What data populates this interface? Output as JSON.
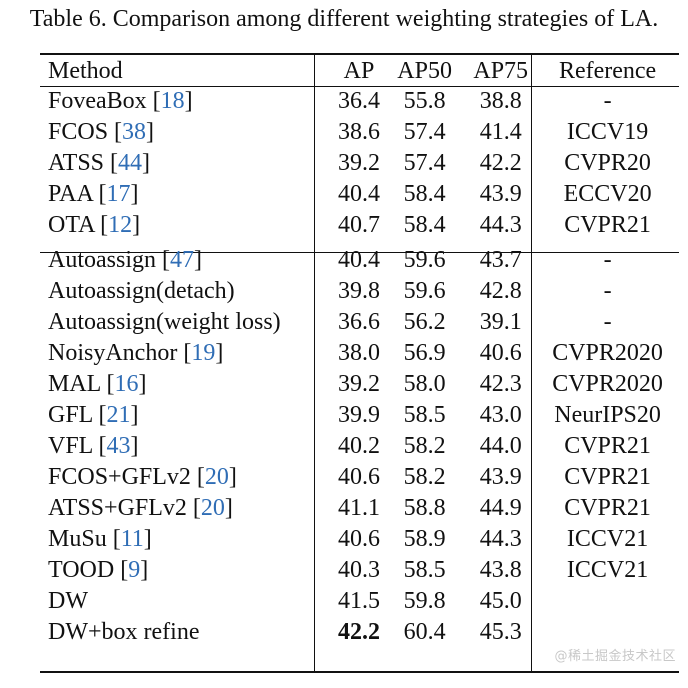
{
  "caption": "Table 6. Comparison among different weighting strategies of LA.",
  "header": {
    "method": "Method",
    "ap": "AP",
    "ap50": "AP50",
    "ap75": "AP75",
    "reference": "Reference"
  },
  "group1": [
    {
      "name": "FoveaBox",
      "cite": "18",
      "ap": "36.4",
      "ap50": "55.8",
      "ap75": "38.8",
      "ref": "-"
    },
    {
      "name": "FCOS",
      "cite": "38",
      "ap": "38.6",
      "ap50": "57.4",
      "ap75": "41.4",
      "ref": "ICCV19"
    },
    {
      "name": "ATSS",
      "cite": "44",
      "ap": "39.2",
      "ap50": "57.4",
      "ap75": "42.2",
      "ref": "CVPR20"
    },
    {
      "name": "PAA",
      "cite": "17",
      "ap": "40.4",
      "ap50": "58.4",
      "ap75": "43.9",
      "ref": "ECCV20"
    },
    {
      "name": "OTA",
      "cite": "12",
      "ap": "40.7",
      "ap50": "58.4",
      "ap75": "44.3",
      "ref": "CVPR21"
    }
  ],
  "group2": [
    {
      "name": "Autoassign",
      "cite": "47",
      "ap": "40.4",
      "ap50": "59.6",
      "ap75": "43.7",
      "ref": "-"
    },
    {
      "name": "Autoassign(detach)",
      "cite": "",
      "ap": "39.8",
      "ap50": "59.6",
      "ap75": "42.8",
      "ref": "-"
    },
    {
      "name": "Autoassign(weight loss)",
      "cite": "",
      "ap": "36.6",
      "ap50": "56.2",
      "ap75": "39.1",
      "ref": "-"
    },
    {
      "name": "NoisyAnchor",
      "cite": "19",
      "ap": "38.0",
      "ap50": "56.9",
      "ap75": "40.6",
      "ref": "CVPR2020"
    },
    {
      "name": "MAL",
      "cite": "16",
      "ap": "39.2",
      "ap50": "58.0",
      "ap75": "42.3",
      "ref": "CVPR2020"
    },
    {
      "name": "GFL",
      "cite": "21",
      "ap": "39.9",
      "ap50": "58.5",
      "ap75": "43.0",
      "ref": "NeurIPS20"
    },
    {
      "name": "VFL",
      "cite": "43",
      "ap": "40.2",
      "ap50": "58.2",
      "ap75": "44.0",
      "ref": "CVPR21"
    },
    {
      "name": "FCOS+GFLv2",
      "cite": "20",
      "ap": "40.6",
      "ap50": "58.2",
      "ap75": "43.9",
      "ref": "CVPR21"
    },
    {
      "name": "ATSS+GFLv2",
      "cite": "20",
      "ap": "41.1",
      "ap50": "58.8",
      "ap75": "44.9",
      "ref": "CVPR21"
    },
    {
      "name": "MuSu",
      "cite": "11",
      "ap": "40.6",
      "ap50": "58.9",
      "ap75": "44.3",
      "ref": "ICCV21"
    },
    {
      "name": "TOOD",
      "cite": "9",
      "ap": "40.3",
      "ap50": "58.5",
      "ap75": "43.8",
      "ref": "ICCV21"
    },
    {
      "name": "DW",
      "cite": "",
      "ap": "41.5",
      "ap50": "59.8",
      "ap75": "45.0",
      "ref": ""
    },
    {
      "name": "DW+box refine",
      "cite": "",
      "ap": "42.2",
      "ap50": "60.4",
      "ap75": "45.3",
      "ref": "",
      "bold_ap": true
    }
  ],
  "watermark": "@稀土掘金技术社区"
}
